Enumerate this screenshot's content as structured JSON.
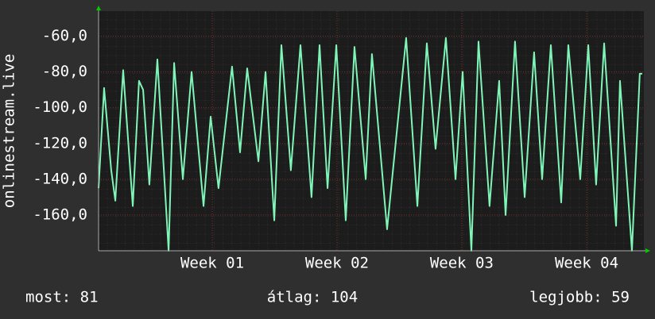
{
  "chart_data": {
    "type": "line",
    "ylabel": "onlinestream.live",
    "x": [
      0,
      0.31,
      0.71,
      0.94,
      1.38,
      1.92,
      2.27,
      2.5,
      2.85,
      3.3,
      3.93,
      4.24,
      4.73,
      5.22,
      5.89,
      6.29,
      6.73,
      7.49,
      7.94,
      8.34,
      8.97,
      9.37,
      9.86,
      10.26,
      10.79,
      11.33,
      11.95,
      12.4,
      12.85,
      13.34,
      13.87,
      14.36,
      14.99,
      15.34,
      16.19,
      17.26,
      17.89,
      18.42,
      18.91,
      19.49,
      20.03,
      20.43,
      20.92,
      21.32,
      21.94,
      22.48,
      22.84,
      23.37,
      23.91,
      24.44,
      24.89,
      25.38,
      25.96,
      26.36,
      27.03,
      27.48,
      27.92,
      28.37,
      29.04,
      29.26,
      29.93,
      30.37,
      30.51
    ],
    "series": [
      {
        "name": "onlinestream.live",
        "color": "#7ff5b8",
        "values": [
          -145,
          -89,
          -135,
          -152,
          -79,
          -155,
          -85,
          -90,
          -143,
          -73,
          -180,
          -75,
          -140,
          -80,
          -155,
          -105,
          -145,
          -77,
          -125,
          -78,
          -130,
          -80,
          -163,
          -65,
          -135,
          -65,
          -150,
          -65,
          -145,
          -65,
          -163,
          -66,
          -140,
          -70,
          -168,
          -61,
          -155,
          -64,
          -123,
          -61,
          -140,
          -80,
          -180,
          -63,
          -155,
          -85,
          -160,
          -63,
          -150,
          -69,
          -140,
          -65,
          -153,
          -65,
          -140,
          -65,
          -143,
          -64,
          -166,
          -85,
          -180,
          -81,
          -81
        ]
      }
    ],
    "xlim": [
      0,
      30.6
    ],
    "xticks": [
      {
        "value": 6.38,
        "label": "Week 01"
      },
      {
        "value": 13.38,
        "label": "Week 02"
      },
      {
        "value": 20.38,
        "label": "Week 03"
      },
      {
        "value": 27.39,
        "label": "Week 04"
      }
    ],
    "ylim": [
      -180,
      -46
    ],
    "yticks": [
      {
        "value": -60,
        "label": "-60,0"
      },
      {
        "value": -80,
        "label": "-80,0"
      },
      {
        "value": -100,
        "label": "-100,0"
      },
      {
        "value": -120,
        "label": "-120,0"
      },
      {
        "value": -140,
        "label": "-140,0"
      },
      {
        "value": -160,
        "label": "-160,0"
      }
    ],
    "grid": true,
    "footer": {
      "current": "most: 81",
      "average": "átlag: 104",
      "best": "legjobb: 59"
    }
  }
}
